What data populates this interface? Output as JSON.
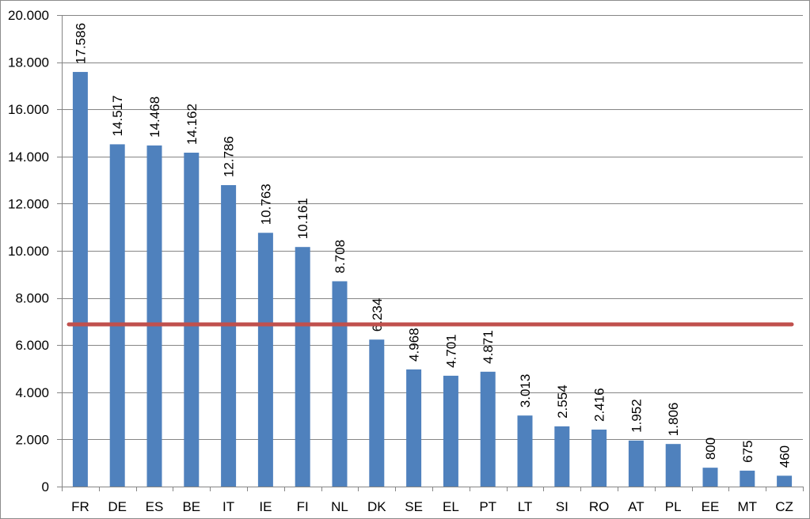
{
  "chart_data": {
    "type": "bar",
    "categories": [
      "FR",
      "DE",
      "ES",
      "BE",
      "IT",
      "IE",
      "FI",
      "NL",
      "DK",
      "SE",
      "EL",
      "PT",
      "LT",
      "SI",
      "RO",
      "AT",
      "PL",
      "EE",
      "MT",
      "CZ"
    ],
    "values": [
      17586,
      14517,
      14468,
      14162,
      12786,
      10763,
      10161,
      8708,
      6234,
      4968,
      4701,
      4871,
      3013,
      2554,
      2416,
      1952,
      1806,
      800,
      675,
      460
    ],
    "value_labels": [
      "17.586",
      "14.517",
      "14.468",
      "14.162",
      "12.786",
      "10.763",
      "10.161",
      "8.708",
      "6.234",
      "4.968",
      "4.701",
      "4.871",
      "3.013",
      "2.554",
      "2.416",
      "1.952",
      "1.806",
      "800",
      "675",
      "460"
    ],
    "y_ticks": [
      0,
      2000,
      4000,
      6000,
      8000,
      10000,
      12000,
      14000,
      16000,
      18000,
      20000
    ],
    "y_tick_labels": [
      "0",
      "2.000",
      "4.000",
      "6.000",
      "8.000",
      "10.000",
      "12.000",
      "14.000",
      "16.000",
      "18.000",
      "20.000"
    ],
    "ylim": [
      0,
      20000
    ],
    "reference_line": 6880,
    "grid": true,
    "title": "",
    "xlabel": "",
    "ylabel": "",
    "colors": {
      "bar": "#4f81bd",
      "reference_line": "#c0504d",
      "grid": "#858585",
      "axis": "#858585"
    }
  }
}
